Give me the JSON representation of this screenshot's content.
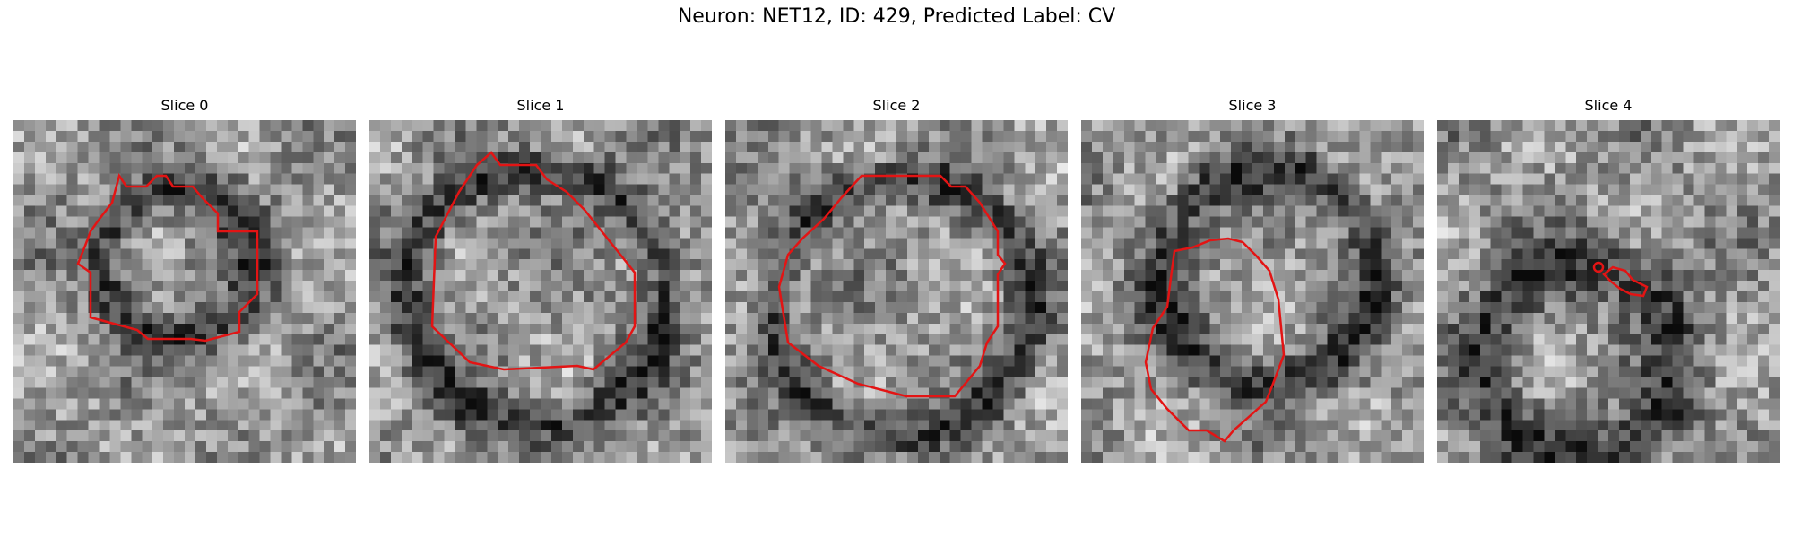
{
  "figure": {
    "title": "Neuron: NET12, ID: 429, Predicted Label: CV"
  },
  "slices": [
    {
      "label": "Slice 0"
    },
    {
      "label": "Slice 1"
    },
    {
      "label": "Slice 2"
    },
    {
      "label": "Slice 3"
    },
    {
      "label": "Slice 4"
    }
  ],
  "colors": {
    "contour": "#e31414",
    "image_cmap": "grayscale"
  }
}
